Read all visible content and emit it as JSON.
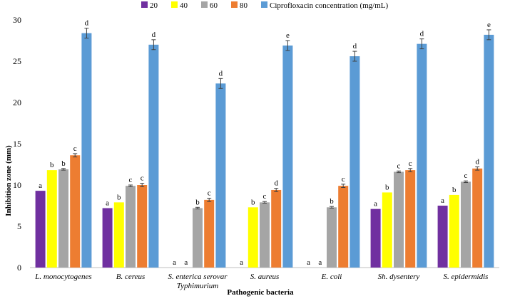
{
  "chart_data": {
    "type": "bar",
    "xlabel": "Pathogenic bacteria",
    "ylabel": "Inhibition zone (mm)",
    "ylim": [
      0,
      30
    ],
    "yticks": [
      "0",
      "5",
      "10",
      "15",
      "20",
      "25",
      "30"
    ],
    "grid": false,
    "legend_position": "top",
    "categories": [
      [
        "L. monocytogenes"
      ],
      [
        "B. cereus"
      ],
      [
        "S. enterica serovar",
        "Typhimurium"
      ],
      [
        "S. aureus"
      ],
      [
        "E. coli"
      ],
      [
        "Sh. dysentery"
      ],
      [
        "S. epidermidis"
      ]
    ],
    "series": [
      {
        "name": "20",
        "color": "#7030a0",
        "values": [
          9.3,
          7.2,
          0,
          0,
          0,
          7.1,
          7.5
        ],
        "errors": [
          0,
          0,
          0,
          0,
          0,
          0,
          0
        ],
        "labels": [
          "a",
          "a",
          "a",
          "a",
          "a",
          "a",
          "a"
        ]
      },
      {
        "name": "40",
        "color": "#ffff00",
        "values": [
          11.8,
          7.9,
          0,
          7.3,
          0,
          9.1,
          8.8
        ],
        "errors": [
          0,
          0,
          0,
          0,
          0,
          0,
          0
        ],
        "labels": [
          "b",
          "b",
          "a",
          "b",
          "a",
          "b",
          "b"
        ]
      },
      {
        "name": "60",
        "color": "#a5a5a5",
        "values": [
          11.9,
          9.9,
          7.2,
          7.9,
          7.3,
          11.6,
          10.4
        ],
        "errors": [
          0.1,
          0.1,
          0.1,
          0.1,
          0.1,
          0.1,
          0.1
        ],
        "labels": [
          "b",
          "c",
          "b",
          "c",
          "b",
          "c",
          "c"
        ]
      },
      {
        "name": "80",
        "color": "#ed7d31",
        "values": [
          13.6,
          10.0,
          8.2,
          9.4,
          9.9,
          11.8,
          12.0
        ],
        "errors": [
          0.2,
          0.2,
          0.2,
          0.2,
          0.2,
          0.2,
          0.2
        ],
        "labels": [
          "c",
          "c",
          "c",
          "d",
          "c",
          "c",
          "d"
        ]
      },
      {
        "name": "Ciprofloxacin concentration (mg/mL)",
        "color": "#5b9bd5",
        "values": [
          28.4,
          27.0,
          22.3,
          26.9,
          25.6,
          27.1,
          28.2
        ],
        "errors": [
          0.6,
          0.6,
          0.6,
          0.6,
          0.6,
          0.6,
          0.6
        ],
        "labels": [
          "d",
          "d",
          "d",
          "e",
          "d",
          "d",
          "e"
        ]
      }
    ]
  }
}
